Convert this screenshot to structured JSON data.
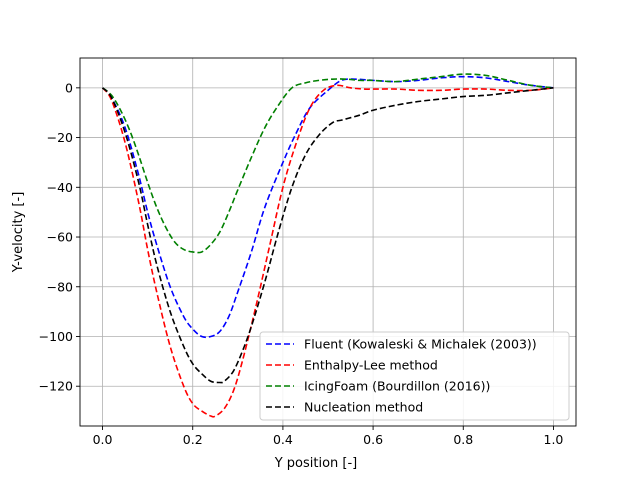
{
  "chart_data": {
    "type": "line",
    "title": "",
    "xlabel": "Y position [-]",
    "ylabel": "Y-velocity [-]",
    "xlim": [
      -0.05,
      1.05
    ],
    "ylim": [
      -136,
      12
    ],
    "xticks": [
      0.0,
      0.2,
      0.4,
      0.6,
      0.8,
      1.0
    ],
    "yticks": [
      0,
      -20,
      -40,
      -60,
      -80,
      -100,
      -120
    ],
    "xtick_labels": [
      "0.0",
      "0.2",
      "0.4",
      "0.6",
      "0.8",
      "1.0"
    ],
    "ytick_labels": [
      "0",
      "−20",
      "−40",
      "−60",
      "−80",
      "−100",
      "−120"
    ],
    "grid": true,
    "legend_position": "lower-right",
    "series": [
      {
        "name": "Fluent (Kowaleski & Michalek (2003))",
        "color": "#0000ff",
        "x": [
          0.0,
          0.02,
          0.05,
          0.08,
          0.1,
          0.12,
          0.15,
          0.18,
          0.2,
          0.22,
          0.24,
          0.26,
          0.28,
          0.3,
          0.33,
          0.36,
          0.4,
          0.43,
          0.46,
          0.5,
          0.53,
          0.56,
          0.6,
          0.65,
          0.7,
          0.75,
          0.8,
          0.85,
          0.9,
          0.95,
          1.0
        ],
        "y": [
          0,
          -4,
          -16,
          -35,
          -50,
          -63,
          -80,
          -92,
          -97,
          -100,
          -100,
          -98,
          -92,
          -82,
          -66,
          -48,
          -30,
          -18,
          -8,
          -1,
          3,
          3.5,
          3,
          2.5,
          3,
          4,
          4.5,
          4,
          2.5,
          1,
          0
        ]
      },
      {
        "name": "Enthalpy-Lee method",
        "color": "#ff0000",
        "x": [
          0.0,
          0.02,
          0.05,
          0.08,
          0.1,
          0.12,
          0.15,
          0.18,
          0.2,
          0.22,
          0.24,
          0.25,
          0.27,
          0.29,
          0.31,
          0.34,
          0.37,
          0.4,
          0.43,
          0.46,
          0.49,
          0.52,
          0.55,
          0.58,
          0.6,
          0.65,
          0.7,
          0.75,
          0.8,
          0.85,
          0.9,
          0.95,
          1.0
        ],
        "y": [
          0,
          -5,
          -22,
          -46,
          -65,
          -82,
          -104,
          -120,
          -127,
          -130,
          -132,
          -132,
          -129,
          -122,
          -110,
          -88,
          -64,
          -40,
          -22,
          -8,
          -1,
          1,
          0,
          -0.5,
          -0.5,
          -0.5,
          -1,
          -1,
          -0.5,
          -0.5,
          -1,
          -1,
          0
        ]
      },
      {
        "name": "IcingFoam (Bourdillon (2016))",
        "color": "#008000",
        "x": [
          0.0,
          0.02,
          0.04,
          0.06,
          0.08,
          0.1,
          0.12,
          0.14,
          0.16,
          0.18,
          0.2,
          0.22,
          0.24,
          0.26,
          0.28,
          0.3,
          0.33,
          0.36,
          0.39,
          0.42,
          0.45,
          0.48,
          0.51,
          0.54,
          0.57,
          0.6,
          0.65,
          0.7,
          0.75,
          0.8,
          0.85,
          0.9,
          0.95,
          1.0
        ],
        "y": [
          0,
          -3,
          -9,
          -17,
          -27,
          -38,
          -48,
          -56,
          -62,
          -65,
          -66,
          -66,
          -63,
          -58,
          -50,
          -41,
          -28,
          -16,
          -7,
          0,
          2,
          3,
          3.5,
          3.5,
          3,
          3,
          2.5,
          3.5,
          4.5,
          5.5,
          5,
          3,
          1,
          0
        ]
      },
      {
        "name": "Nucleation method",
        "color": "#000000",
        "x": [
          0.0,
          0.02,
          0.05,
          0.08,
          0.1,
          0.12,
          0.15,
          0.18,
          0.2,
          0.22,
          0.24,
          0.26,
          0.27,
          0.29,
          0.31,
          0.33,
          0.36,
          0.39,
          0.42,
          0.45,
          0.48,
          0.51,
          0.53,
          0.55,
          0.57,
          0.6,
          0.65,
          0.7,
          0.75,
          0.8,
          0.85,
          0.9,
          0.95,
          1.0
        ],
        "y": [
          0,
          -4,
          -18,
          -38,
          -55,
          -71,
          -90,
          -104,
          -111,
          -115,
          -118,
          -118.5,
          -118,
          -114,
          -106,
          -96,
          -78,
          -58,
          -40,
          -27,
          -19,
          -14,
          -13,
          -12,
          -11,
          -9,
          -7,
          -5.5,
          -4.5,
          -3.5,
          -3,
          -2,
          -1,
          0
        ]
      }
    ]
  }
}
